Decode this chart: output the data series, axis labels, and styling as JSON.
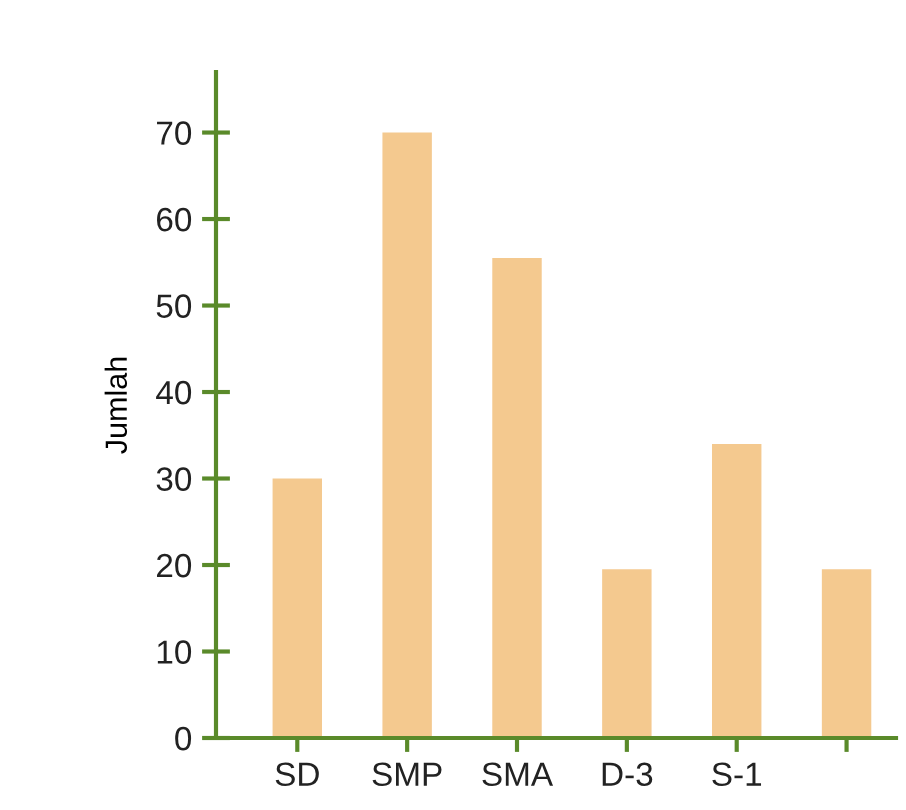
{
  "chart_data": {
    "type": "bar",
    "ylabel": "Jumlah",
    "categories": [
      "SD",
      "SMP",
      "SMA",
      "D-3",
      "S-1",
      null
    ],
    "values": [
      30,
      70,
      55.5,
      19.5,
      34,
      19.5
    ],
    "color": "#f4c98f",
    "ylim": [
      0,
      77
    ],
    "yticks": [
      0,
      10,
      20,
      30,
      40,
      50,
      60,
      70
    ],
    "grid": false,
    "legend": false
  }
}
